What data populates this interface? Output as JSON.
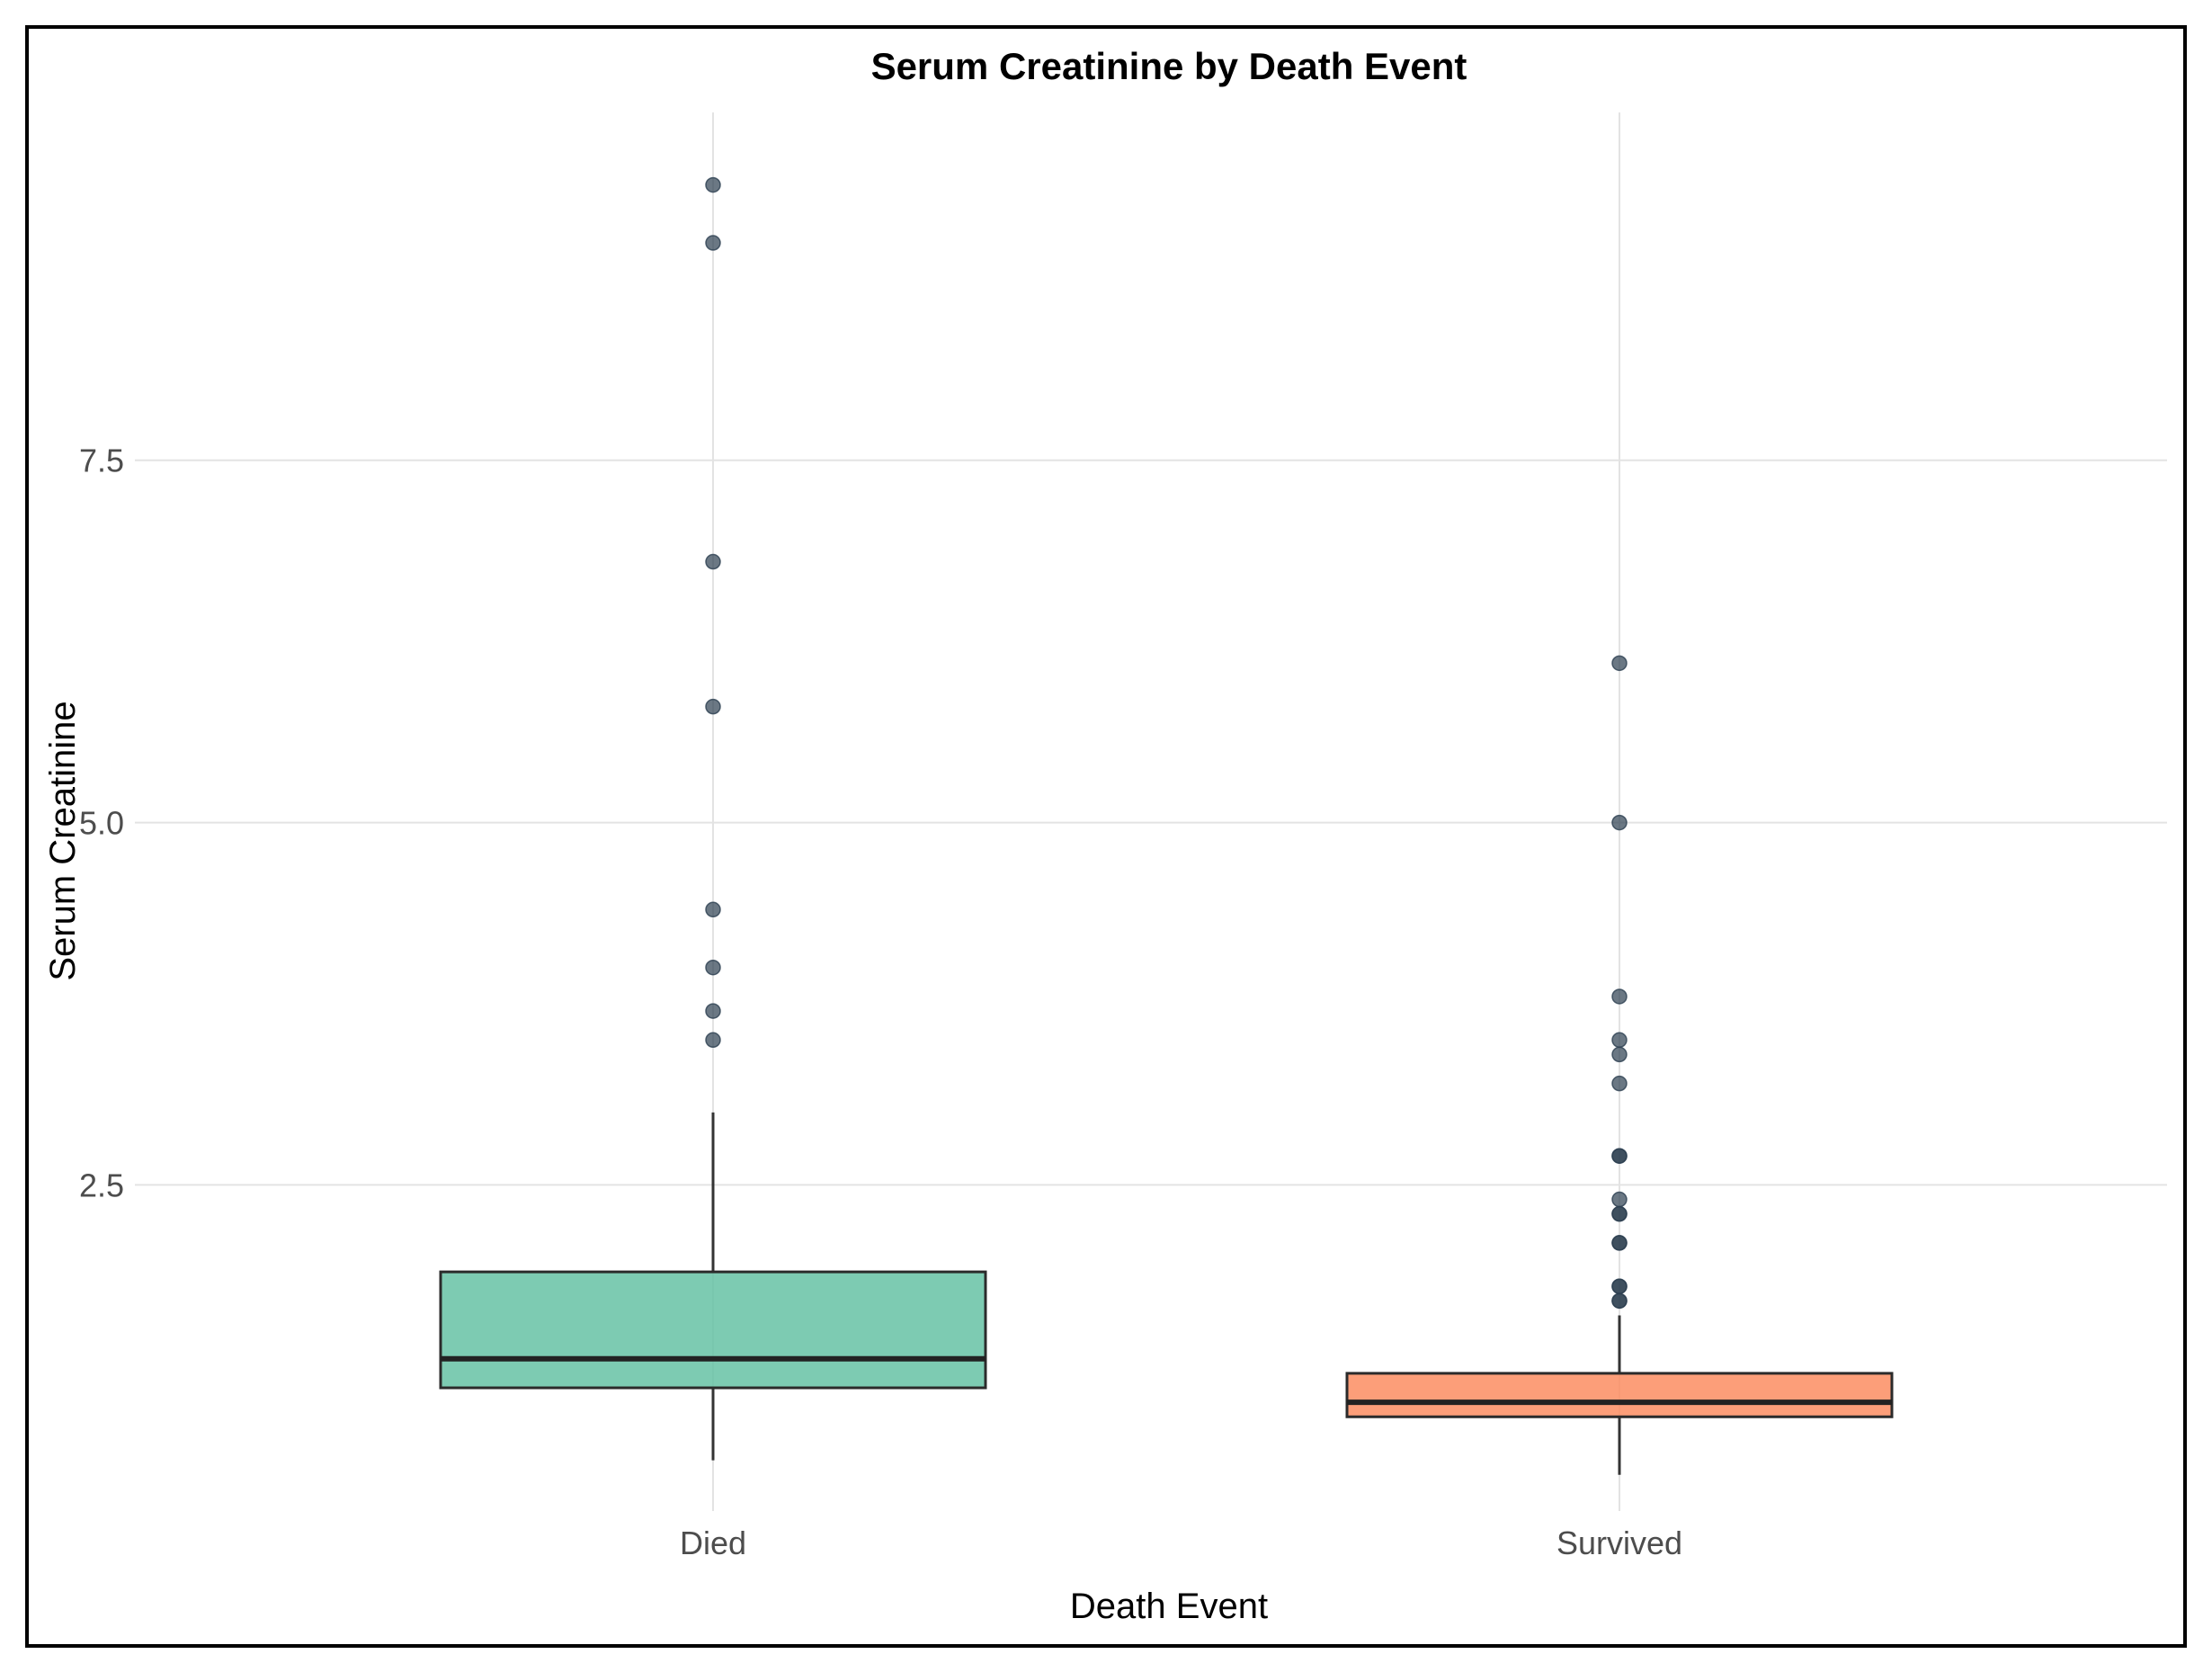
{
  "chart_data": {
    "type": "box",
    "title": "Serum Creatinine by Death Event",
    "xlabel": "Death Event",
    "ylabel": "Serum Creatinine",
    "ylim": [
      0.25,
      9.9
    ],
    "yticks": [
      {
        "value": 2.5,
        "label": "2.5"
      },
      {
        "value": 5.0,
        "label": "5.0"
      },
      {
        "value": 7.5,
        "label": "7.5"
      }
    ],
    "grid": true,
    "legend": "none",
    "categories": [
      "Died",
      "Survived"
    ],
    "boxes": [
      {
        "category": "Died",
        "color": "#66c2a5",
        "whisker_low": 0.6,
        "q1": 1.1,
        "median": 1.3,
        "q3": 1.9,
        "whisker_high": 3.0,
        "outliers": [
          9.4,
          9.0,
          6.8,
          5.8,
          4.4,
          4.0,
          3.7,
          3.5
        ]
      },
      {
        "category": "Survived",
        "color": "#fc8d62",
        "whisker_low": 0.5,
        "q1": 0.9,
        "median": 1.0,
        "q3": 1.2,
        "whisker_high": 1.6,
        "outliers": [
          6.1,
          5.0,
          3.8,
          3.5,
          3.4,
          3.2,
          2.7,
          2.7,
          2.4,
          2.3,
          2.3,
          2.1,
          2.1,
          1.8,
          1.8,
          1.7,
          1.7
        ]
      }
    ],
    "outlier_color": "#2c3e50"
  }
}
